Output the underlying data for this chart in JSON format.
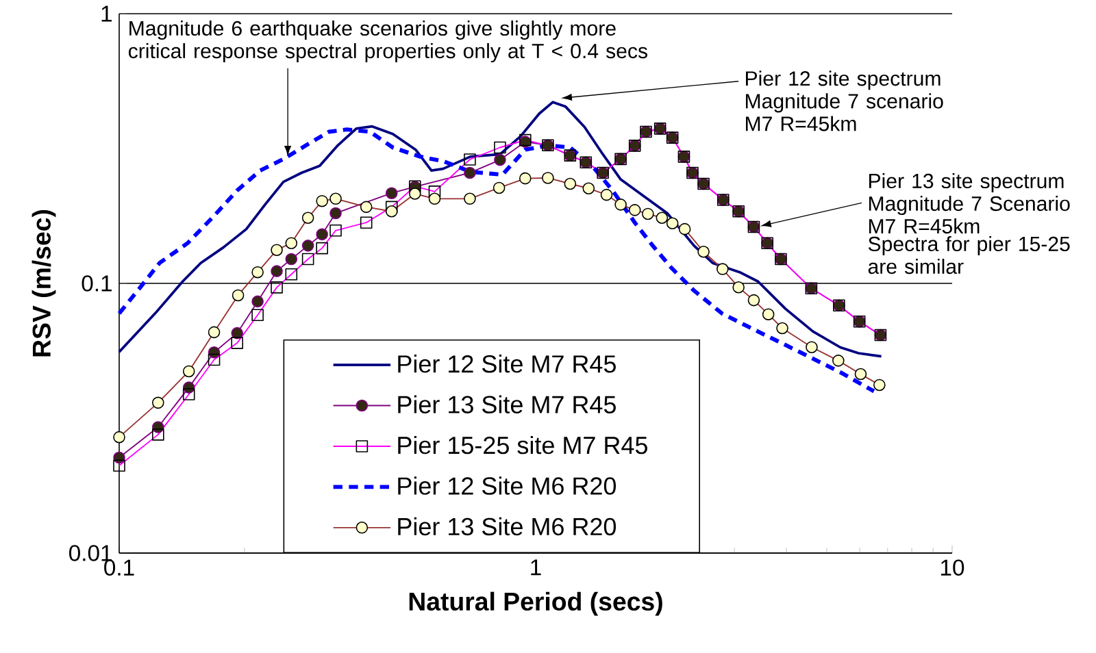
{
  "chart_data": {
    "type": "line",
    "xlabel": "Natural Period (secs)",
    "ylabel": "RSV (m/sec)",
    "log": "xy",
    "xlim": [
      0.1,
      10
    ],
    "ylim": [
      0.01,
      1
    ],
    "xticks": [
      0.1,
      1,
      10
    ],
    "yticks": [
      0.01,
      0.1,
      1
    ],
    "grid": "y",
    "legend": "bottom",
    "series": [
      {
        "name": "Pier 12 Site M7 R45",
        "color": "#000080",
        "marker": "none",
        "line_style": "solid",
        "x": [
          0.1,
          0.122,
          0.142,
          0.157,
          0.178,
          0.202,
          0.224,
          0.248,
          0.274,
          0.303,
          0.335,
          0.371,
          0.405,
          0.454,
          0.515,
          0.562,
          0.599,
          0.697,
          0.821,
          0.92,
          1.02,
          1.1,
          1.18,
          1.31,
          1.45,
          1.6,
          1.87,
          2.07,
          2.4,
          2.66,
          3.09,
          3.42,
          3.98,
          4.63,
          5.39,
          5.96,
          6.76
        ],
        "values": [
          0.0557,
          0.0774,
          0.1016,
          0.119,
          0.136,
          0.159,
          0.196,
          0.238,
          0.257,
          0.273,
          0.325,
          0.375,
          0.382,
          0.358,
          0.313,
          0.262,
          0.266,
          0.295,
          0.301,
          0.351,
          0.426,
          0.47,
          0.452,
          0.38,
          0.301,
          0.243,
          0.204,
          0.182,
          0.138,
          0.119,
          0.11,
          0.1016,
          0.0805,
          0.0664,
          0.0579,
          0.0551,
          0.0536
        ]
      },
      {
        "name": "Pier 13 Site M7 R45",
        "color": "#800080",
        "marker": "circle",
        "line_style": "solid",
        "x": [
          0.1,
          0.124,
          0.147,
          0.169,
          0.192,
          0.215,
          0.239,
          0.259,
          0.284,
          0.307,
          0.331,
          0.451,
          0.513,
          0.695,
          0.821,
          0.944,
          1.07,
          1.21,
          1.32,
          1.45,
          1.6,
          1.73,
          1.84,
          1.99,
          2.13,
          2.27,
          2.38,
          2.53,
          2.82,
          3.07,
          3.34,
          3.6,
          3.88,
          4.59,
          5.35,
          5.99,
          6.73
        ],
        "values": [
          0.0226,
          0.0293,
          0.0411,
          0.0555,
          0.0654,
          0.0857,
          0.111,
          0.123,
          0.138,
          0.152,
          0.182,
          0.216,
          0.228,
          0.257,
          0.287,
          0.335,
          0.325,
          0.298,
          0.281,
          0.257,
          0.289,
          0.324,
          0.365,
          0.375,
          0.347,
          0.295,
          0.257,
          0.234,
          0.204,
          0.185,
          0.162,
          0.141,
          0.123,
          0.0958,
          0.0828,
          0.0722,
          0.0643
        ]
      },
      {
        "name": "Pier 15-25 site M7 R45",
        "color": "#ff00ff",
        "marker": "square",
        "line_style": "solid",
        "x": [
          0.1,
          0.124,
          0.147,
          0.169,
          0.192,
          0.215,
          0.239,
          0.259,
          0.284,
          0.307,
          0.331,
          0.392,
          0.451,
          0.513,
          0.572,
          0.695,
          0.821,
          0.944,
          1.07,
          1.21,
          1.32,
          1.45,
          1.6,
          1.73,
          1.84,
          1.99,
          2.13,
          2.27,
          2.38,
          2.53,
          2.82,
          3.07,
          3.34,
          3.6,
          3.88,
          4.59,
          5.35,
          5.99,
          6.73
        ],
        "values": [
          0.0211,
          0.0275,
          0.0388,
          0.0521,
          0.0601,
          0.0763,
          0.0966,
          0.108,
          0.123,
          0.135,
          0.157,
          0.168,
          0.192,
          0.229,
          0.219,
          0.288,
          0.319,
          0.34,
          0.325,
          0.298,
          0.281,
          0.257,
          0.289,
          0.324,
          0.365,
          0.375,
          0.347,
          0.295,
          0.257,
          0.234,
          0.204,
          0.185,
          0.162,
          0.141,
          0.123,
          0.0958,
          0.0828,
          0.0722,
          0.0643
        ]
      },
      {
        "name": "Pier 12 Site M6 R20",
        "color": "#0000ff",
        "marker": "none",
        "line_style": "dashed",
        "x": [
          0.1,
          0.113,
          0.125,
          0.146,
          0.169,
          0.192,
          0.218,
          0.248,
          0.281,
          0.319,
          0.352,
          0.4,
          0.454,
          0.528,
          0.599,
          0.7,
          0.832,
          0.944,
          1.07,
          1.21,
          1.38,
          1.53,
          1.73,
          1.91,
          2.12,
          2.4,
          2.8,
          3.25,
          3.98,
          4.63,
          5.39,
          6.49
        ],
        "values": [
          0.0774,
          0.0977,
          0.119,
          0.141,
          0.178,
          0.221,
          0.262,
          0.289,
          0.325,
          0.365,
          0.372,
          0.365,
          0.319,
          0.295,
          0.284,
          0.259,
          0.253,
          0.313,
          0.325,
          0.319,
          0.268,
          0.221,
          0.168,
          0.138,
          0.114,
          0.094,
          0.0774,
          0.0689,
          0.0591,
          0.0526,
          0.0468,
          0.0398
        ]
      },
      {
        "name": "Pier 13 Site M6 R20",
        "color": "#993333",
        "marker": "circle",
        "line_style": "solid",
        "x": [
          0.1,
          0.124,
          0.147,
          0.169,
          0.193,
          0.215,
          0.239,
          0.259,
          0.284,
          0.307,
          0.331,
          0.392,
          0.451,
          0.513,
          0.572,
          0.695,
          0.817,
          0.944,
          1.07,
          1.21,
          1.34,
          1.48,
          1.6,
          1.73,
          1.86,
          2.01,
          2.13,
          2.28,
          2.53,
          2.81,
          3.07,
          3.34,
          3.62,
          3.91,
          4.6,
          5.33,
          6.03,
          6.69
        ],
        "values": [
          0.0269,
          0.0361,
          0.0472,
          0.0659,
          0.0903,
          0.11,
          0.133,
          0.141,
          0.175,
          0.202,
          0.206,
          0.192,
          0.185,
          0.215,
          0.206,
          0.206,
          0.226,
          0.245,
          0.246,
          0.234,
          0.225,
          0.213,
          0.196,
          0.187,
          0.181,
          0.175,
          0.167,
          0.159,
          0.131,
          0.113,
          0.0967,
          0.0866,
          0.0768,
          0.0682,
          0.058,
          0.0517,
          0.0461,
          0.042
        ]
      }
    ],
    "annotations": [
      {
        "text": "Magnitude 6 earthquake scenarios give slightly more critical response spectral properties only at T < 0.4 secs",
        "x": 0.254,
        "y": 0.295
      },
      {
        "text": "Pier 12 site spectrum Magnitude 7 scenario M7 R=45km",
        "x": 1.15,
        "y": 0.486
      },
      {
        "text": "Pier 13 site spectrum Magnitude 7 Scenario M7 R=45km",
        "x": 3.46,
        "y": 0.163
      },
      "Spectra for pier 15-25 are similar"
    ]
  }
}
